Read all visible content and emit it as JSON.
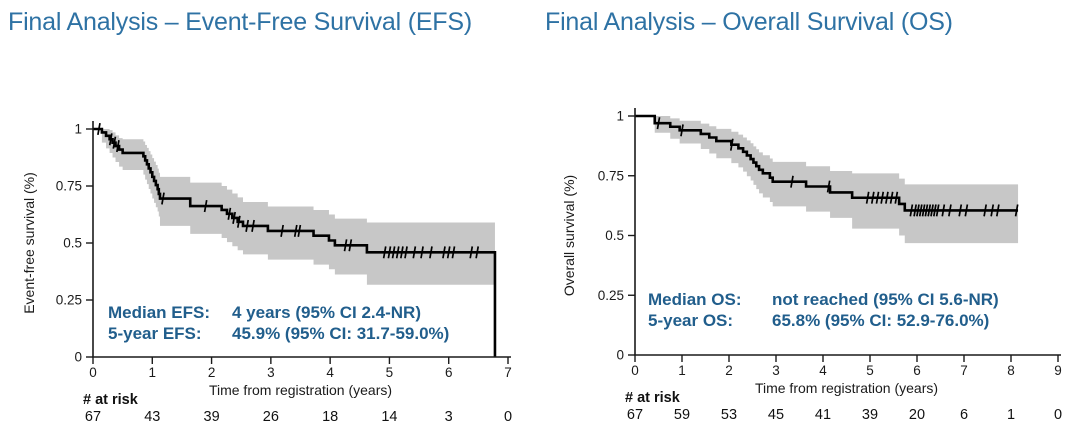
{
  "colors": {
    "title_blue": "#2e72a4",
    "annotation_blue": "#215e8c",
    "curve_black": "#000000",
    "ci_band_gray": "#c7c7c7",
    "axis_dark": "#1a1a1a"
  },
  "chart_data": [
    {
      "type": "line",
      "subtype": "kaplan-meier-step",
      "title": "Final Analysis – Event-Free Survival (EFS)",
      "xlabel": "Time from registration (years)",
      "ylabel": "Event-free survival (%)",
      "xlim": [
        0,
        7
      ],
      "ylim": [
        0,
        1
      ],
      "grid": false,
      "legend": "none",
      "x_ticks": [
        0,
        1,
        2,
        3,
        4,
        5,
        6,
        7
      ],
      "y_ticks": [
        0,
        0.25,
        0.5,
        0.75,
        1
      ],
      "y_tick_labels": [
        "0",
        "0.25",
        "0.5",
        "0.75",
        "1"
      ],
      "km_steps": [
        [
          0.0,
          1.0,
          null,
          null
        ],
        [
          0.15,
          0.985,
          0.94,
          1.0
        ],
        [
          0.22,
          0.97,
          0.915,
          1.0
        ],
        [
          0.28,
          0.955,
          0.895,
          0.995
        ],
        [
          0.33,
          0.94,
          0.875,
          0.985
        ],
        [
          0.38,
          0.925,
          0.855,
          0.972
        ],
        [
          0.44,
          0.91,
          0.835,
          0.96
        ],
        [
          0.5,
          0.895,
          0.82,
          0.955
        ],
        [
          0.85,
          0.88,
          0.8,
          0.945
        ],
        [
          0.88,
          0.862,
          0.778,
          0.93
        ],
        [
          0.91,
          0.845,
          0.758,
          0.917
        ],
        [
          0.94,
          0.827,
          0.737,
          0.903
        ],
        [
          0.97,
          0.81,
          0.717,
          0.888
        ],
        [
          1.0,
          0.79,
          0.695,
          0.872
        ],
        [
          1.03,
          0.772,
          0.676,
          0.857
        ],
        [
          1.06,
          0.754,
          0.657,
          0.842
        ],
        [
          1.09,
          0.736,
          0.638,
          0.826
        ],
        [
          1.11,
          0.715,
          0.616,
          0.808
        ],
        [
          1.13,
          0.695,
          0.575,
          0.79
        ],
        [
          1.64,
          0.662,
          0.54,
          0.765
        ],
        [
          2.17,
          0.645,
          0.522,
          0.75
        ],
        [
          2.26,
          0.628,
          0.504,
          0.734
        ],
        [
          2.35,
          0.61,
          0.486,
          0.717
        ],
        [
          2.44,
          0.593,
          0.468,
          0.7
        ],
        [
          2.53,
          0.575,
          0.45,
          0.68
        ],
        [
          2.95,
          0.553,
          0.427,
          0.66
        ],
        [
          3.72,
          0.532,
          0.405,
          0.645
        ],
        [
          3.98,
          0.511,
          0.385,
          0.625
        ],
        [
          4.08,
          0.49,
          0.362,
          0.607
        ],
        [
          4.62,
          0.459,
          0.317,
          0.59
        ],
        [
          6.78,
          0.0,
          null,
          null
        ]
      ],
      "curve_end": 6.78,
      "censor_times": [
        0.1,
        0.3,
        0.36,
        0.42,
        1.18,
        1.9,
        2.3,
        2.38,
        2.46,
        2.6,
        2.7,
        3.19,
        3.42,
        3.48,
        4.26,
        4.34,
        4.92,
        5.0,
        5.07,
        5.14,
        5.21,
        5.28,
        5.42,
        5.55,
        5.7,
        5.92,
        6.0,
        6.08,
        6.38,
        6.48
      ],
      "at_risk_label": "# at risk",
      "at_risk": [
        67,
        43,
        39,
        26,
        18,
        14,
        3,
        0
      ],
      "annotation_rows": [
        {
          "label": "Median EFS:",
          "value": "4 years (95% CI 2.4-NR)"
        },
        {
          "label": "5-year EFS:",
          "value": "45.9% (95% CI: 31.7-59.0%)"
        }
      ]
    },
    {
      "type": "line",
      "subtype": "kaplan-meier-step",
      "title": "Final Analysis – Overall Survival (OS)",
      "xlabel": "Time from registration (years)",
      "ylabel": "Overall survival (%)",
      "xlim": [
        0,
        9
      ],
      "ylim": [
        0,
        1
      ],
      "grid": false,
      "legend": "none",
      "x_ticks": [
        0,
        1,
        2,
        3,
        4,
        5,
        6,
        7,
        8,
        9
      ],
      "y_ticks": [
        0,
        0.25,
        0.5,
        0.75,
        1
      ],
      "y_tick_labels": [
        "0",
        "0.25",
        "0.5",
        "0.75",
        "1"
      ],
      "km_steps": [
        [
          0.0,
          1.0,
          null,
          null
        ],
        [
          0.42,
          0.97,
          0.93,
          1.0
        ],
        [
          0.75,
          0.955,
          0.905,
          0.99
        ],
        [
          0.95,
          0.94,
          0.885,
          0.98
        ],
        [
          1.4,
          0.925,
          0.862,
          0.968
        ],
        [
          1.58,
          0.91,
          0.843,
          0.957
        ],
        [
          1.73,
          0.895,
          0.823,
          0.946
        ],
        [
          2.05,
          0.88,
          0.803,
          0.934
        ],
        [
          2.2,
          0.865,
          0.785,
          0.922
        ],
        [
          2.3,
          0.85,
          0.767,
          0.91
        ],
        [
          2.38,
          0.835,
          0.748,
          0.898
        ],
        [
          2.46,
          0.82,
          0.73,
          0.886
        ],
        [
          2.52,
          0.805,
          0.712,
          0.873
        ],
        [
          2.58,
          0.79,
          0.694,
          0.861
        ],
        [
          2.64,
          0.775,
          0.676,
          0.848
        ],
        [
          2.72,
          0.76,
          0.659,
          0.836
        ],
        [
          2.87,
          0.742,
          0.64,
          0.822
        ],
        [
          2.93,
          0.725,
          0.622,
          0.808
        ],
        [
          3.64,
          0.705,
          0.6,
          0.79
        ],
        [
          4.15,
          0.68,
          0.574,
          0.77
        ],
        [
          4.62,
          0.658,
          0.529,
          0.76
        ],
        [
          5.62,
          0.632,
          0.5,
          0.738
        ],
        [
          5.74,
          0.605,
          0.468,
          0.714
        ]
      ],
      "curve_end": 8.15,
      "censor_times": [
        0.5,
        1.0,
        2.06,
        3.34,
        4.12,
        4.95,
        5.06,
        5.16,
        5.26,
        5.36,
        5.46,
        5.56,
        5.88,
        5.96,
        6.02,
        6.08,
        6.14,
        6.2,
        6.26,
        6.32,
        6.38,
        6.44,
        6.56,
        6.7,
        6.92,
        7.05,
        7.45,
        7.6,
        7.72,
        8.12
      ],
      "at_risk_label": "# at risk",
      "at_risk": [
        67,
        59,
        53,
        45,
        41,
        39,
        20,
        6,
        1,
        0
      ],
      "annotation_rows": [
        {
          "label": "Median OS:",
          "value": "not reached (95% CI 5.6-NR)"
        },
        {
          "label": "5-year OS:",
          "value": "65.8% (95% CI: 52.9-76.0%)"
        }
      ]
    }
  ]
}
